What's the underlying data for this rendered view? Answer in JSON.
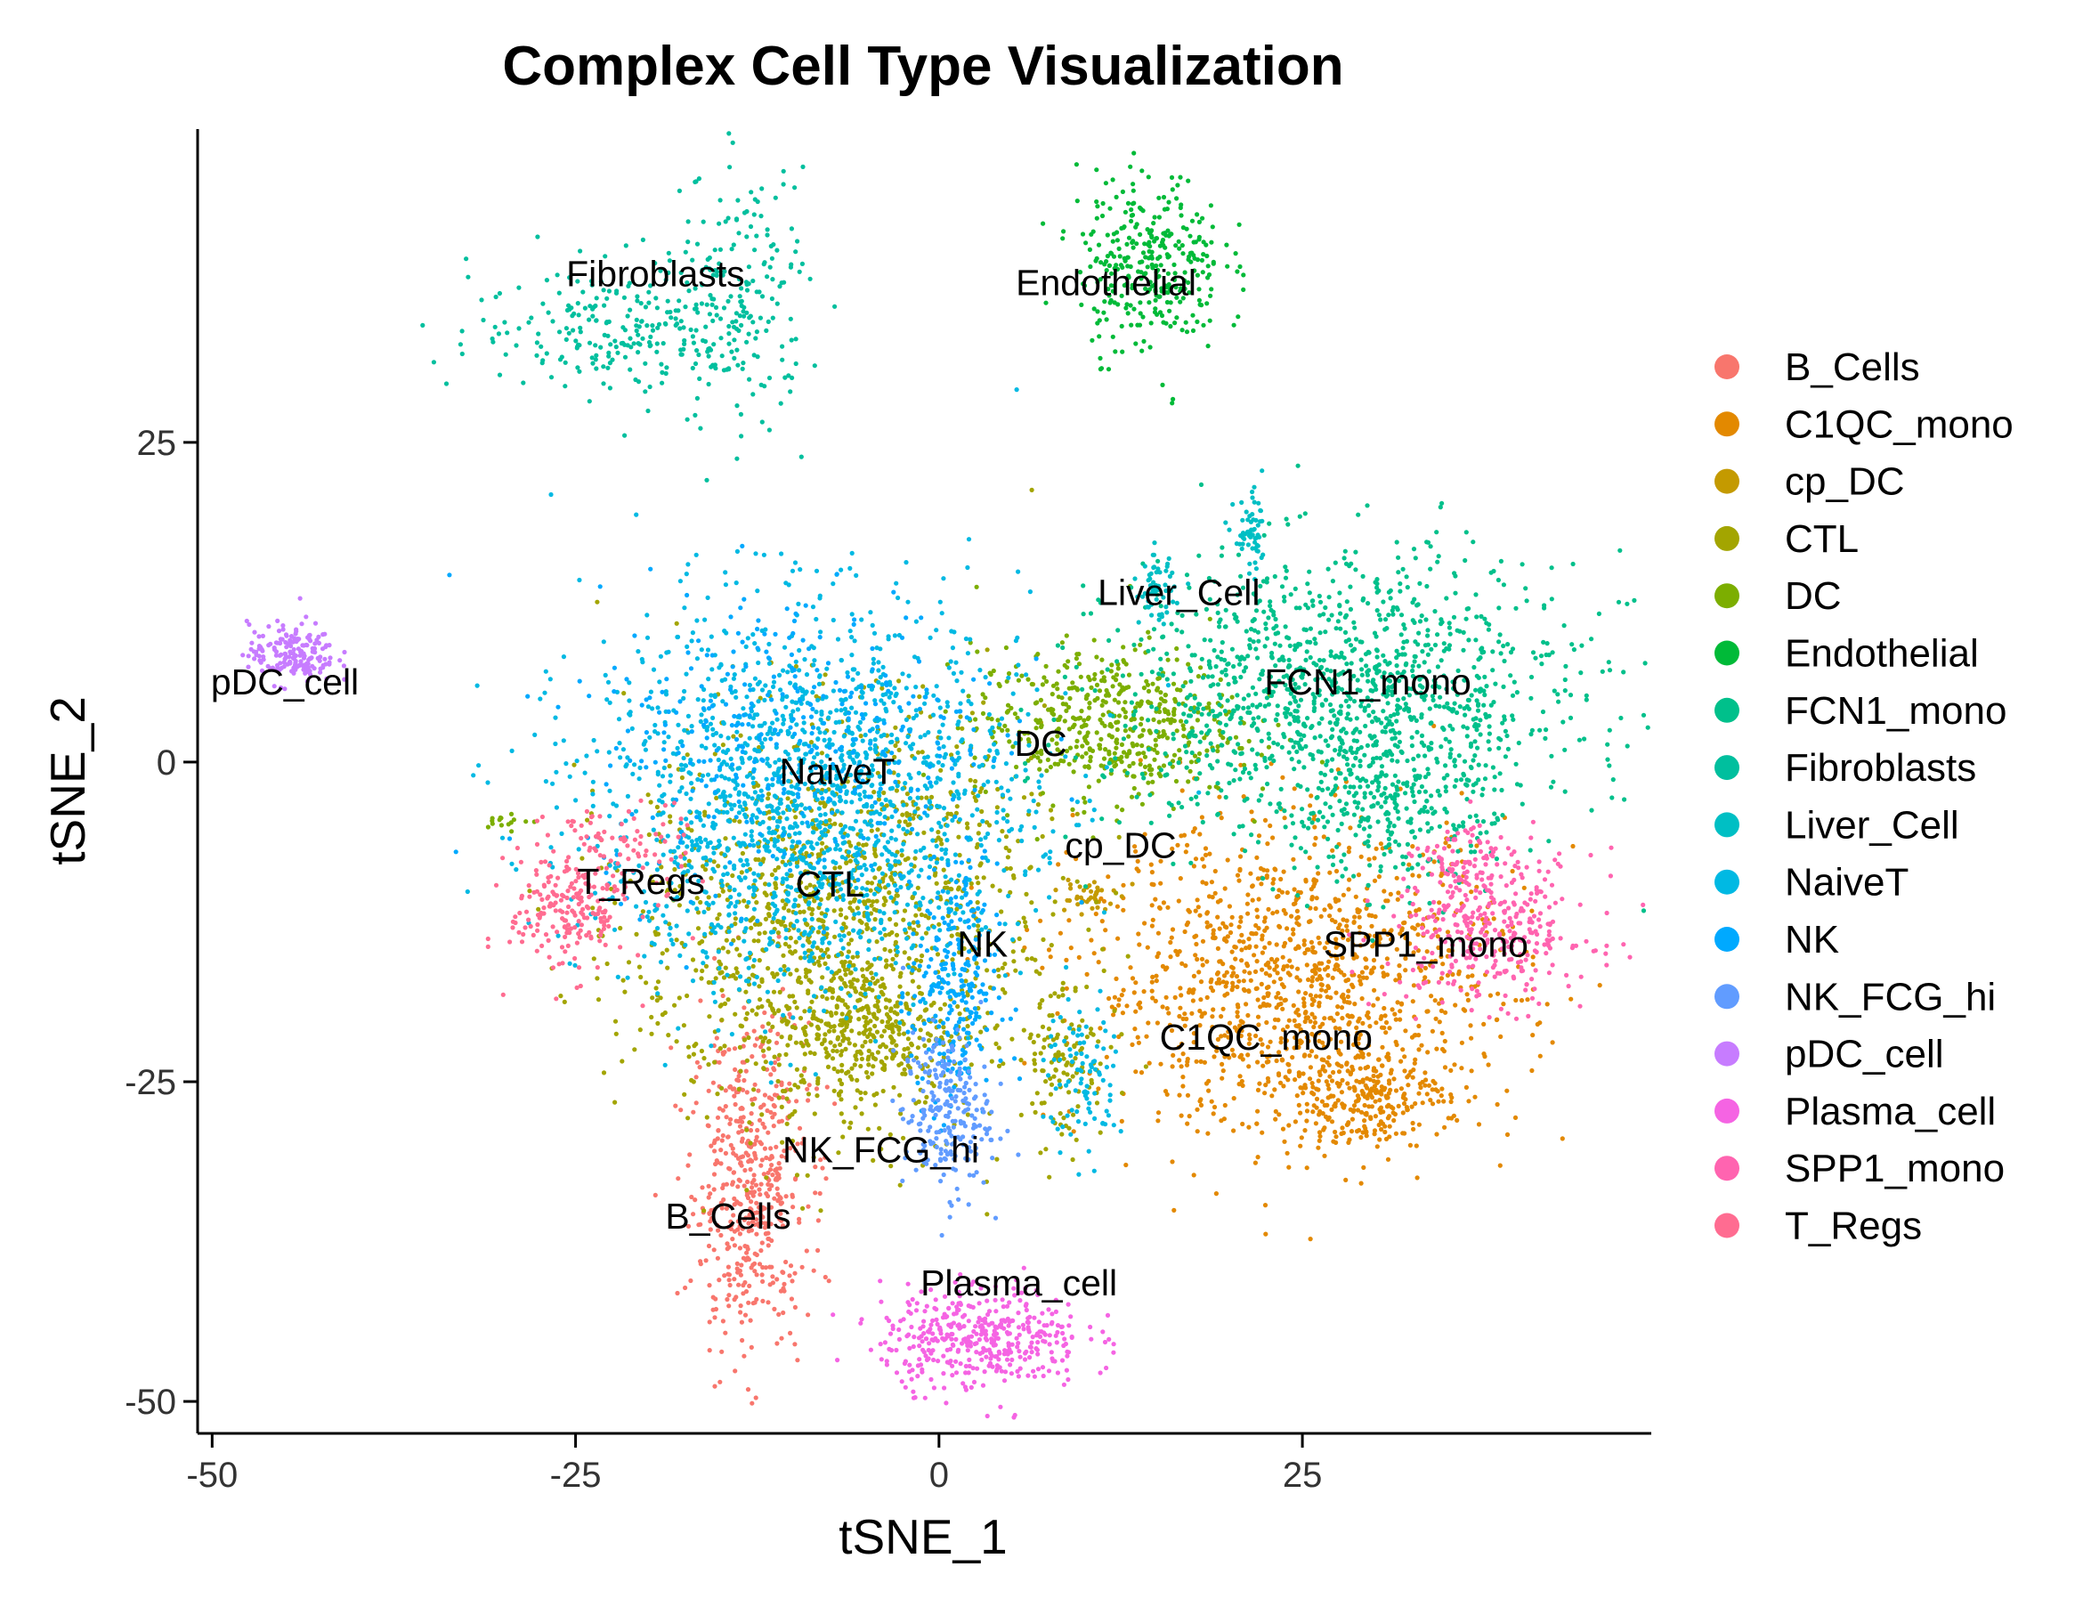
{
  "chart_data": {
    "type": "scatter",
    "title": "Complex Cell Type Visualization",
    "xlabel": "tSNE_1",
    "ylabel": "tSNE_2",
    "xlim": [
      -51,
      49
    ],
    "ylim": [
      -52.5,
      49.5
    ],
    "x_ticks": [
      -50,
      -25,
      0,
      25
    ],
    "y_ticks": [
      25,
      0,
      -25,
      -50
    ],
    "x_tick_labels": [
      "-50",
      "-25",
      "0",
      "25"
    ],
    "y_tick_labels": [
      "25",
      "0",
      "-25",
      "-50"
    ],
    "grid": false,
    "legend_position": "right",
    "series": [
      {
        "name": "B_Cells",
        "color": "#F8766D",
        "label": "B_Cells",
        "label_pos": [
          -14.5,
          -36.5
        ],
        "clusters": [
          {
            "center": [
              -13,
              -33
            ],
            "spread": [
              2.0,
              6.5
            ],
            "count": 520
          }
        ]
      },
      {
        "name": "C1QC_mono",
        "color": "#E38900",
        "label": "C1QC_mono",
        "label_pos": [
          22.5,
          -22.5
        ],
        "clusters": [
          {
            "center": [
              25,
              -17
            ],
            "spread": [
              7.5,
              6.0
            ],
            "count": 1200
          },
          {
            "center": [
              29,
              -26
            ],
            "spread": [
              3.0,
              2.0
            ],
            "count": 260
          }
        ]
      },
      {
        "name": "cp_DC",
        "color": "#C49A00",
        "label": "cp_DC",
        "label_pos": [
          12.5,
          -7.5
        ],
        "clusters": [
          {
            "center": [
              10,
              -10.5
            ],
            "spread": [
              1.0,
              0.8
            ],
            "count": 40
          }
        ]
      },
      {
        "name": "CTL",
        "color": "#A3A500",
        "label": "CTL",
        "label_pos": [
          -7.5,
          -10.5
        ],
        "clusters": [
          {
            "center": [
              -7,
              -13
            ],
            "spread": [
              7.0,
              8.0
            ],
            "count": 1300
          },
          {
            "center": [
              -5,
              -21
            ],
            "spread": [
              3.0,
              3.0
            ],
            "count": 250
          },
          {
            "center": [
              8.5,
              -23
            ],
            "spread": [
              1.5,
              3.5
            ],
            "count": 110
          }
        ]
      },
      {
        "name": "DC",
        "color": "#7CAE00",
        "label": "DC",
        "label_pos": [
          7,
          0.5
        ],
        "clusters": [
          {
            "center": [
              11.5,
              3
            ],
            "spread": [
              4.5,
              3.0
            ],
            "count": 500
          },
          {
            "center": [
              -29.5,
              -4.5
            ],
            "spread": [
              1.0,
              0.3
            ],
            "count": 15
          }
        ]
      },
      {
        "name": "Endothelial",
        "color": "#00BA38",
        "label": "Endothelial",
        "label_pos": [
          11.5,
          36.5
        ],
        "clusters": [
          {
            "center": [
              14.5,
              39
            ],
            "spread": [
              2.5,
              3.5
            ],
            "count": 330
          }
        ]
      },
      {
        "name": "FCN1_mono",
        "color": "#00C08B",
        "label": "FCN1_mono",
        "label_pos": [
          29.5,
          5.3
        ],
        "clusters": [
          {
            "center": [
              28,
              5
            ],
            "spread": [
              8.0,
              5.5
            ],
            "count": 1300
          },
          {
            "center": [
              31,
              -4
            ],
            "spread": [
              3.5,
              3.0
            ],
            "count": 200
          }
        ]
      },
      {
        "name": "Fibroblasts",
        "color": "#00BF9E",
        "label": "Fibroblasts",
        "label_pos": [
          -19.5,
          37.2
        ],
        "clusters": [
          {
            "center": [
              -22,
              34
            ],
            "spread": [
              5.0,
              2.5
            ],
            "count": 220
          },
          {
            "center": [
              -14,
              36
            ],
            "spread": [
              2.5,
              5.0
            ],
            "count": 200
          }
        ]
      },
      {
        "name": "Liver_Cell",
        "color": "#00BFC4",
        "label": "Liver_Cell",
        "label_pos": [
          16.5,
          12.3
        ],
        "clusters": [
          {
            "center": [
              15,
              13.5
            ],
            "spread": [
              0.6,
              1.3
            ],
            "count": 60
          },
          {
            "center": [
              21.5,
              17.5
            ],
            "spread": [
              0.6,
              1.6
            ],
            "count": 60
          }
        ]
      },
      {
        "name": "NaiveT",
        "color": "#00B9E3",
        "label": "NaiveT",
        "label_pos": [
          -7,
          -1.7
        ],
        "clusters": [
          {
            "center": [
              -9,
              -3
            ],
            "spread": [
              7.5,
              7.5
            ],
            "count": 1700
          },
          {
            "center": [
              10,
              -25
            ],
            "spread": [
              1.3,
              3.0
            ],
            "count": 90
          }
        ]
      },
      {
        "name": "NK",
        "color": "#00A9FF",
        "label": "NK",
        "label_pos": [
          3,
          -15.2
        ],
        "clusters": [
          {
            "center": [
              1,
              -18
            ],
            "spread": [
              1.5,
              5.0
            ],
            "count": 250
          },
          {
            "center": [
              -10,
              2
            ],
            "spread": [
              7.0,
              6.0
            ],
            "count": 350
          }
        ]
      },
      {
        "name": "NK_FCG_hi",
        "color": "#619CFF",
        "label": "NK_FCG_hi",
        "label_pos": [
          -4,
          -31.3
        ],
        "clusters": [
          {
            "center": [
              0.5,
              -27.5
            ],
            "spread": [
              1.5,
              3.2
            ],
            "count": 230
          }
        ]
      },
      {
        "name": "pDC_cell",
        "color": "#C77CFF",
        "label": "pDC_cell",
        "label_pos": [
          -45,
          5.3
        ],
        "clusters": [
          {
            "center": [
              -44.5,
              8.5
            ],
            "spread": [
              1.5,
              1.2
            ],
            "count": 180
          }
        ]
      },
      {
        "name": "Plasma_cell",
        "color": "#F564E3",
        "label": "Plasma_cell",
        "label_pos": [
          5.5,
          -41.7
        ],
        "clusters": [
          {
            "center": [
              3,
              -45
            ],
            "spread": [
              3.5,
              2.0
            ],
            "count": 420
          }
        ]
      },
      {
        "name": "SPP1_mono",
        "color": "#FF64B0",
        "label": "SPP1_mono",
        "label_pos": [
          33.5,
          -15.2
        ],
        "clusters": [
          {
            "center": [
              38,
              -13
            ],
            "spread": [
              3.5,
              3.0
            ],
            "count": 360
          },
          {
            "center": [
              36,
              -8
            ],
            "spread": [
              1.5,
              1.5
            ],
            "count": 60
          }
        ]
      },
      {
        "name": "T_Regs",
        "color": "#FF6C91",
        "label": "T_Regs",
        "label_pos": [
          -20.5,
          -10.3
        ],
        "clusters": [
          {
            "center": [
              -25.5,
              -11.5
            ],
            "spread": [
              2.0,
              2.5
            ],
            "count": 200
          },
          {
            "center": [
              -22,
              -7
            ],
            "spread": [
              2.5,
              2.0
            ],
            "count": 80
          }
        ]
      }
    ]
  }
}
